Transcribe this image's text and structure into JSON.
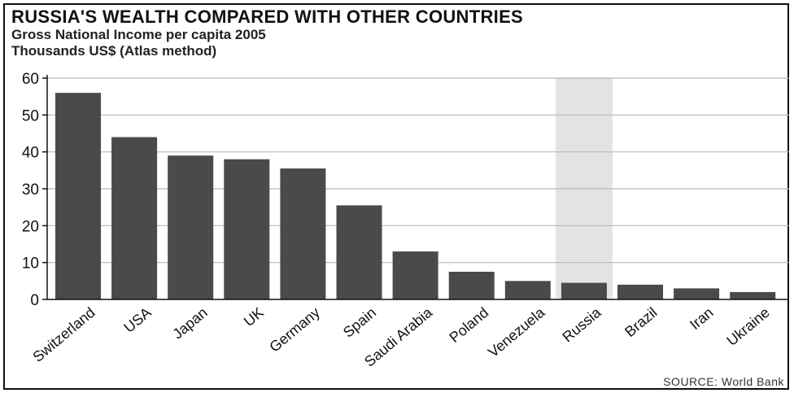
{
  "chart_data": {
    "type": "bar",
    "title": "RUSSIA'S WEALTH COMPARED WITH OTHER COUNTRIES",
    "subtitle": "Gross National Income per capita 2005",
    "ylabel": "Thousands US$  (Atlas method)",
    "xlabel": "",
    "categories": [
      "Switzerland",
      "USA",
      "Japan",
      "UK",
      "Germany",
      "Spain",
      "Saudi Arabia",
      "Poland",
      "Venezuela",
      "Russia",
      "Brazil",
      "Iran",
      "Ukraine"
    ],
    "values": [
      56,
      44,
      39,
      38,
      35.5,
      25.5,
      13,
      7.5,
      5,
      4.5,
      4,
      3,
      2
    ],
    "ylim": [
      0,
      60
    ],
    "yticks": [
      0,
      10,
      20,
      30,
      40,
      50,
      60
    ],
    "grid": true,
    "highlight": "Russia",
    "source": "SOURCE: World Bank",
    "colors": {
      "bar": "#4a4a4a",
      "highlight_band": "#e3e3e3",
      "grid": "#b8b8b8",
      "axis": "#111111"
    }
  }
}
